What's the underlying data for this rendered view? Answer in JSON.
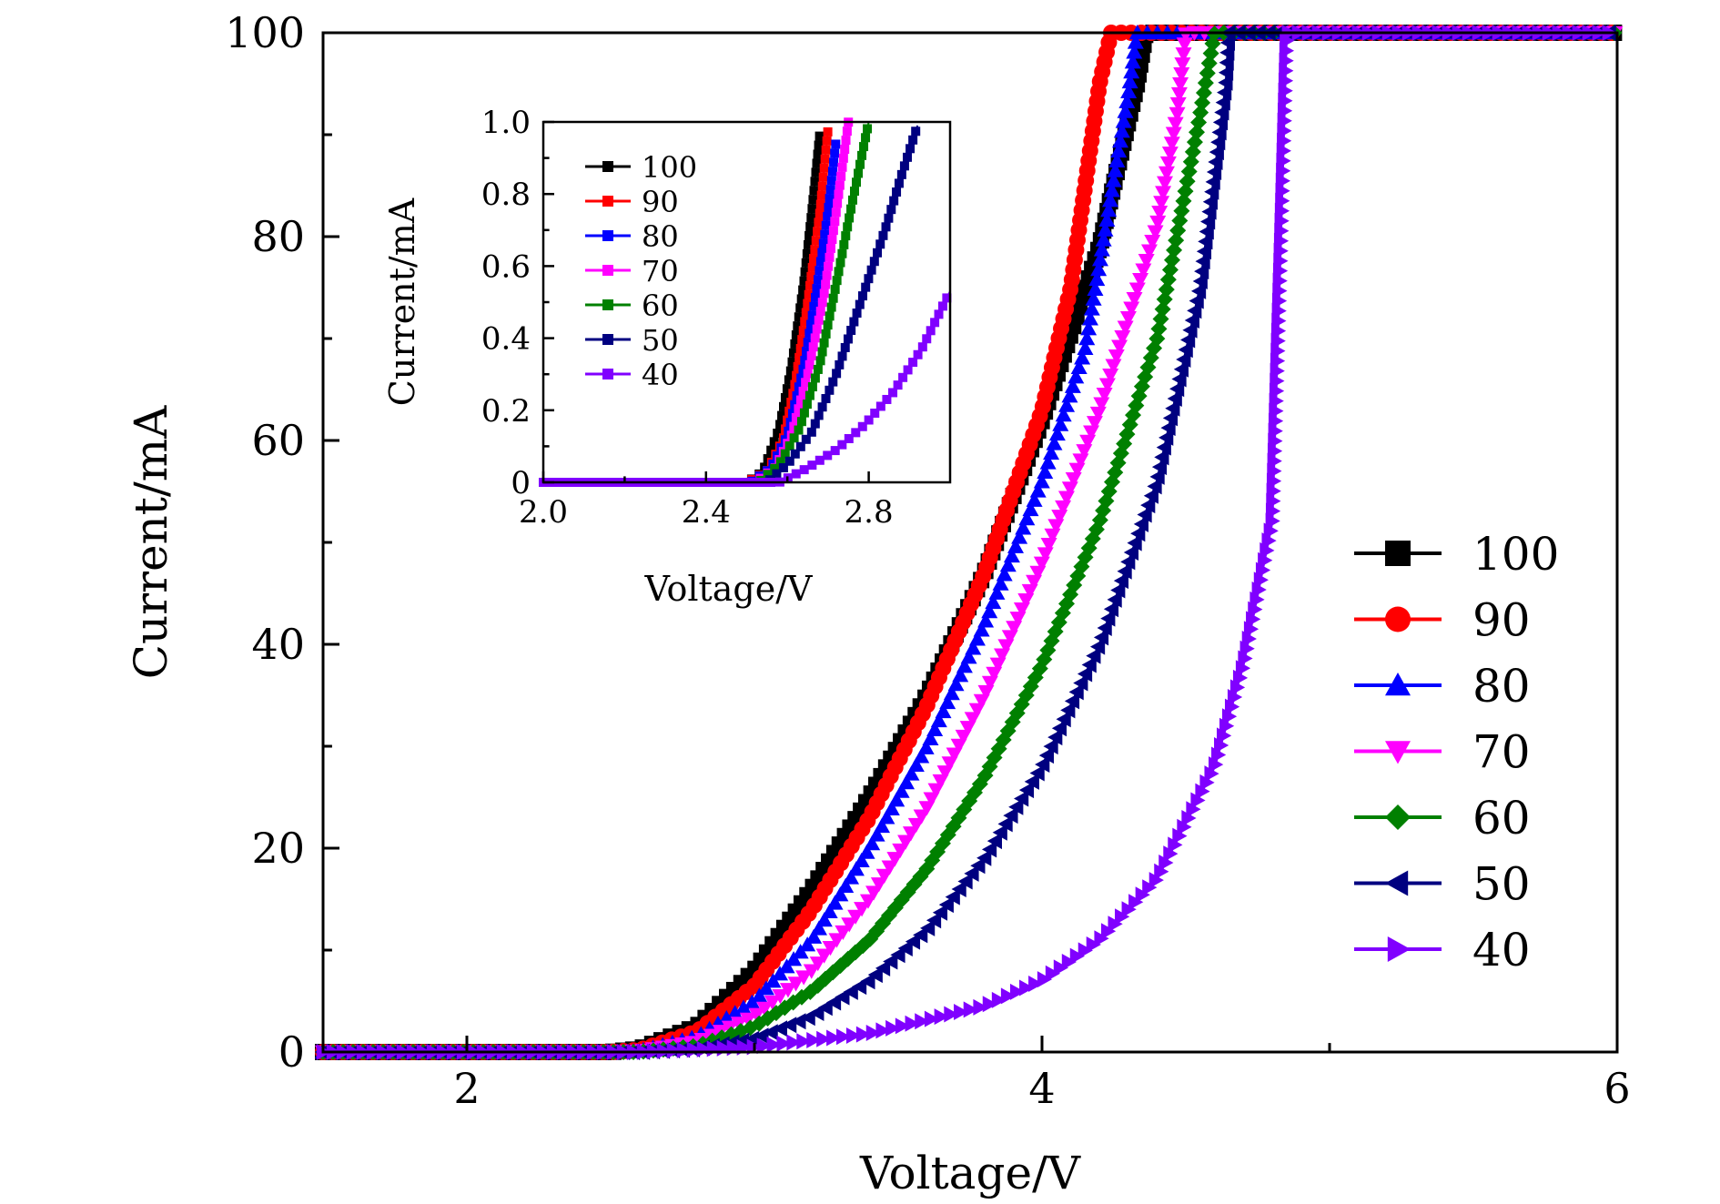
{
  "chart_data": [
    {
      "id": "main",
      "type": "line",
      "xlabel": "Voltage/V",
      "ylabel": "Current/mA",
      "xlim": [
        1.5,
        6
      ],
      "ylim": [
        0,
        100
      ],
      "xticks": [
        2,
        4,
        6
      ],
      "xtick_labels": [
        "2",
        "4",
        "6"
      ],
      "yticks": [
        0,
        20,
        40,
        60,
        80,
        100
      ],
      "ytick_labels": [
        "0",
        "20",
        "40",
        "60",
        "80",
        "100"
      ],
      "grid": false,
      "legend_position": "right",
      "series": [
        {
          "name": "100",
          "marker": "square",
          "color": "#000000",
          "x": [
            1.5,
            2.5,
            2.6,
            2.8,
            3.0,
            3.2,
            3.4,
            3.6,
            3.8,
            4.0,
            4.2,
            4.33,
            4.36,
            6.0
          ],
          "y": [
            0,
            0,
            0.3,
            2.5,
            8,
            16,
            25,
            35,
            47,
            62,
            79,
            95,
            100,
            100
          ]
        },
        {
          "name": "90",
          "marker": "circle",
          "color": "#ff0000",
          "x": [
            1.5,
            2.5,
            2.6,
            2.8,
            3.0,
            3.2,
            3.4,
            3.6,
            3.8,
            4.0,
            4.1,
            4.2,
            4.24,
            6.0
          ],
          "y": [
            0,
            0,
            0.2,
            2,
            6.5,
            14,
            23,
            34,
            47,
            63,
            75,
            95,
            100,
            100
          ]
        },
        {
          "name": "80",
          "marker": "triangle-up",
          "color": "#0000ff",
          "x": [
            1.5,
            2.5,
            2.6,
            2.8,
            3.0,
            3.2,
            3.4,
            3.6,
            3.8,
            4.0,
            4.15,
            4.3,
            4.33,
            6.0
          ],
          "y": [
            0,
            0,
            0.1,
            1.5,
            5,
            11,
            20,
            30,
            42,
            56,
            69,
            94,
            100,
            100
          ]
        },
        {
          "name": "70",
          "marker": "triangle-down",
          "color": "#ff00ff",
          "x": [
            1.5,
            2.5,
            2.6,
            2.8,
            3.0,
            3.2,
            3.4,
            3.6,
            3.8,
            4.0,
            4.2,
            4.4,
            4.47,
            4.5,
            6.0
          ],
          "y": [
            0,
            0,
            0.1,
            1,
            3.5,
            8,
            15,
            24,
            35,
            48,
            63,
            81,
            92,
            100,
            100
          ]
        },
        {
          "name": "60",
          "marker": "diamond",
          "color": "#008000",
          "x": [
            1.5,
            2.6,
            2.8,
            3.0,
            3.2,
            3.4,
            3.6,
            3.8,
            4.0,
            4.2,
            4.4,
            4.55,
            4.6,
            6.0
          ],
          "y": [
            0,
            0,
            0.6,
            2.5,
            6,
            11,
            18,
            27,
            38,
            52,
            70,
            92,
            100,
            100
          ]
        },
        {
          "name": "50",
          "marker": "triangle-left",
          "color": "#000080",
          "x": [
            1.5,
            2.6,
            2.8,
            3.0,
            3.2,
            3.4,
            3.6,
            3.8,
            4.0,
            4.2,
            4.4,
            4.55,
            4.64,
            4.65,
            6.0
          ],
          "y": [
            0,
            0,
            0.3,
            1.3,
            3.5,
            7,
            12,
            19,
            28,
            40,
            56,
            75,
            95,
            100,
            100
          ]
        },
        {
          "name": "40",
          "marker": "triangle-right",
          "color": "#8000ff",
          "x": [
            1.5,
            2.6,
            3.0,
            3.4,
            3.8,
            4.0,
            4.2,
            4.4,
            4.6,
            4.7,
            4.8,
            4.83,
            4.85,
            6.0
          ],
          "y": [
            0,
            0,
            0.5,
            1.8,
            4.5,
            7,
            11,
            17,
            28,
            38,
            52,
            80,
            100,
            100
          ]
        }
      ]
    },
    {
      "id": "inset",
      "type": "line",
      "xlabel": "Voltage/V",
      "ylabel": "Current/mA",
      "xlim": [
        2.0,
        3.0
      ],
      "ylim": [
        0,
        1.0
      ],
      "xticks": [
        2.0,
        2.4,
        2.8
      ],
      "xtick_labels": [
        "2.0",
        "2.4",
        "2.8"
      ],
      "yticks": [
        0,
        0.2,
        0.4,
        0.6,
        0.8,
        1.0
      ],
      "ytick_labels": [
        "0",
        "0.2",
        "0.4",
        "0.6",
        "0.8",
        "1.0"
      ],
      "grid": false,
      "legend_position": "top-left",
      "series": [
        {
          "name": "100",
          "marker": "square",
          "color": "#000000",
          "x": [
            2.0,
            2.5,
            2.54,
            2.58,
            2.61,
            2.64,
            2.66,
            2.68
          ],
          "y": [
            0,
            0,
            0.03,
            0.15,
            0.32,
            0.55,
            0.75,
            0.97
          ]
        },
        {
          "name": "90",
          "marker": "square",
          "color": "#ff0000",
          "x": [
            2.0,
            2.5,
            2.55,
            2.59,
            2.62,
            2.65,
            2.68,
            2.7
          ],
          "y": [
            0,
            0,
            0.03,
            0.12,
            0.28,
            0.5,
            0.75,
            0.98
          ]
        },
        {
          "name": "80",
          "marker": "square",
          "color": "#0000ff",
          "x": [
            2.0,
            2.51,
            2.56,
            2.6,
            2.64,
            2.67,
            2.7,
            2.72
          ],
          "y": [
            0,
            0,
            0.04,
            0.13,
            0.32,
            0.52,
            0.75,
            0.95
          ]
        },
        {
          "name": "70",
          "marker": "square",
          "color": "#ff00ff",
          "x": [
            2.0,
            2.52,
            2.57,
            2.61,
            2.65,
            2.69,
            2.72,
            2.75
          ],
          "y": [
            0,
            0,
            0.04,
            0.13,
            0.3,
            0.52,
            0.75,
            1.0
          ]
        },
        {
          "name": "60",
          "marker": "square",
          "color": "#008000",
          "x": [
            2.0,
            2.53,
            2.58,
            2.63,
            2.68,
            2.72,
            2.76,
            2.8
          ],
          "y": [
            0,
            0,
            0.05,
            0.15,
            0.33,
            0.55,
            0.78,
            1.0
          ]
        },
        {
          "name": "50",
          "marker": "square",
          "color": "#000080",
          "x": [
            2.0,
            2.55,
            2.6,
            2.66,
            2.72,
            2.78,
            2.84,
            2.88,
            2.92
          ],
          "y": [
            0,
            0,
            0.05,
            0.14,
            0.3,
            0.5,
            0.7,
            0.85,
            0.99
          ]
        },
        {
          "name": "40",
          "marker": "square",
          "color": "#8000ff",
          "x": [
            2.0,
            2.58,
            2.65,
            2.72,
            2.79,
            2.86,
            2.93,
            3.0
          ],
          "y": [
            0,
            0,
            0.04,
            0.09,
            0.16,
            0.25,
            0.37,
            0.53
          ]
        }
      ]
    }
  ]
}
